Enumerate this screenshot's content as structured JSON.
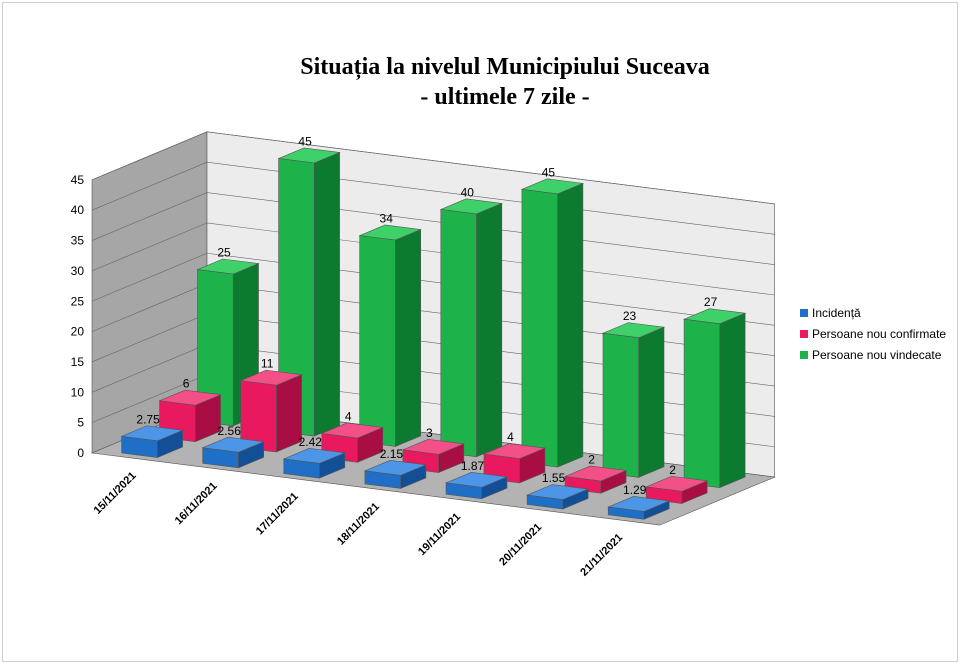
{
  "chart_data": {
    "type": "bar",
    "title": "Situația la nivelul Municipiului Suceava",
    "subtitle": "- ultimele 7 zile -",
    "categories": [
      "15/11/2021",
      "16/11/2021",
      "17/11/2021",
      "18/11/2021",
      "19/11/2021",
      "20/11/2021",
      "21/11/2021"
    ],
    "series": [
      {
        "name": "Incidență",
        "values": [
          2.75,
          2.56,
          2.42,
          2.15,
          1.87,
          1.55,
          1.29
        ],
        "color": "#1f6fc6"
      },
      {
        "name": "Persoane nou confirmate",
        "values": [
          6,
          11,
          4,
          3,
          4,
          2,
          2
        ],
        "color": "#e8195f"
      },
      {
        "name": "Persoane nou vindecate",
        "values": [
          25,
          45,
          34,
          40,
          45,
          23,
          27
        ],
        "color": "#1db34a"
      }
    ],
    "ylim": [
      0,
      45
    ],
    "yticks": [
      "0",
      "5",
      "10",
      "15",
      "20",
      "25",
      "30",
      "35",
      "40",
      "45"
    ],
    "grid": true,
    "legend": "right",
    "xlabel": "",
    "ylabel": ""
  }
}
